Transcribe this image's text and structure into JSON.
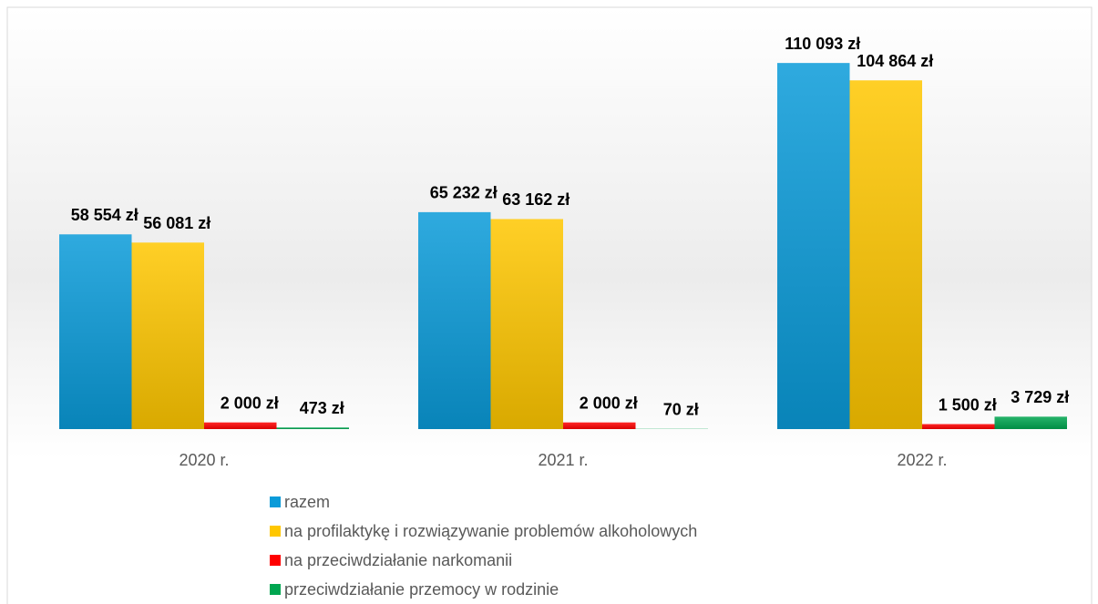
{
  "chart_data": {
    "type": "bar",
    "categories": [
      "2020 r.",
      "2021 r.",
      "2022 r."
    ],
    "series": [
      {
        "name": "razem",
        "color": "#0a9bd9",
        "values": [
          58554,
          65232,
          110093
        ],
        "value_labels": [
          "58 554 zł",
          "65 232 zł",
          "110 093 zł"
        ]
      },
      {
        "name": "na profilaktykę i rozwiązywanie problemów alkoholowych",
        "color": "#ffc700",
        "values": [
          56081,
          63162,
          104864
        ],
        "value_labels": [
          "56 081 zł",
          "63 162 zł",
          "104 864 zł"
        ]
      },
      {
        "name": "na przeciwdziałanie narkomanii",
        "color": "#ff0000",
        "values": [
          2000,
          2000,
          1500
        ],
        "value_labels": [
          "2 000 zł",
          "2 000 zł",
          "1 500 zł"
        ]
      },
      {
        "name": "przeciwdziałanie przemocy w rodzinie",
        "color": "#00a650",
        "values": [
          473,
          70,
          3729
        ],
        "value_labels": [
          "473 zł",
          "70 zł",
          "3 729 zł"
        ]
      }
    ],
    "ylim": [
      0,
      120000
    ]
  }
}
